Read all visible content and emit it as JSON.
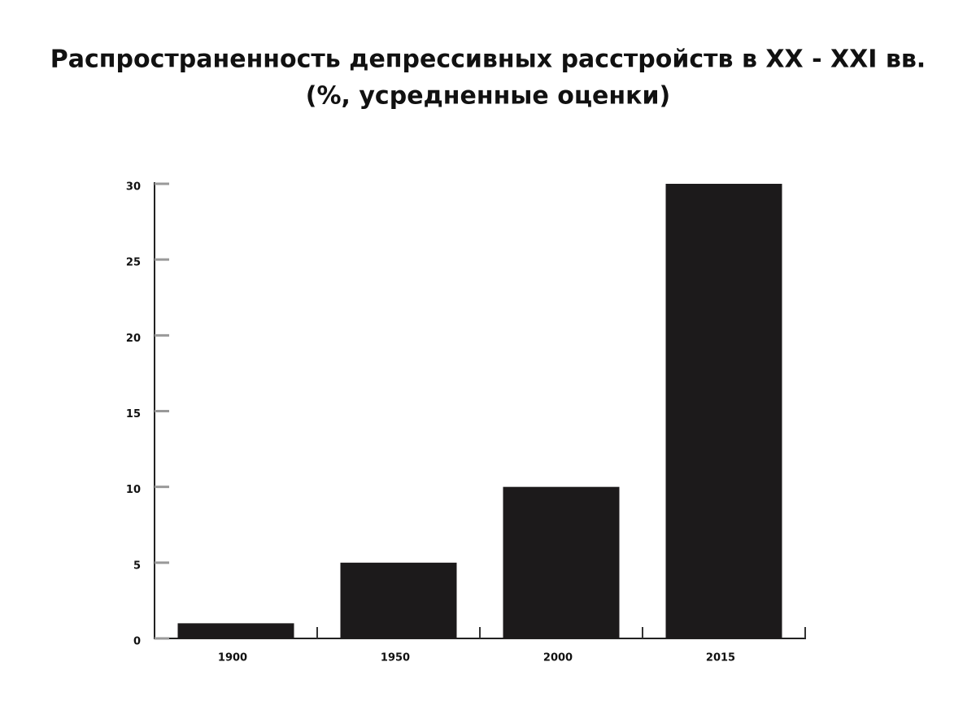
{
  "chart_data": {
    "type": "bar",
    "title": "Распространенность депрессивных расстройств в XX - XXI вв.",
    "subtitle": "(%, усредненные оценки)",
    "categories": [
      "1900",
      "1950",
      "2000",
      "2015"
    ],
    "values": [
      1,
      5,
      10,
      30
    ],
    "color": "#1c1a1b",
    "ylim": [
      0,
      30
    ],
    "yticks": [
      0,
      5,
      10,
      15,
      20,
      25,
      30
    ],
    "grid": false
  }
}
